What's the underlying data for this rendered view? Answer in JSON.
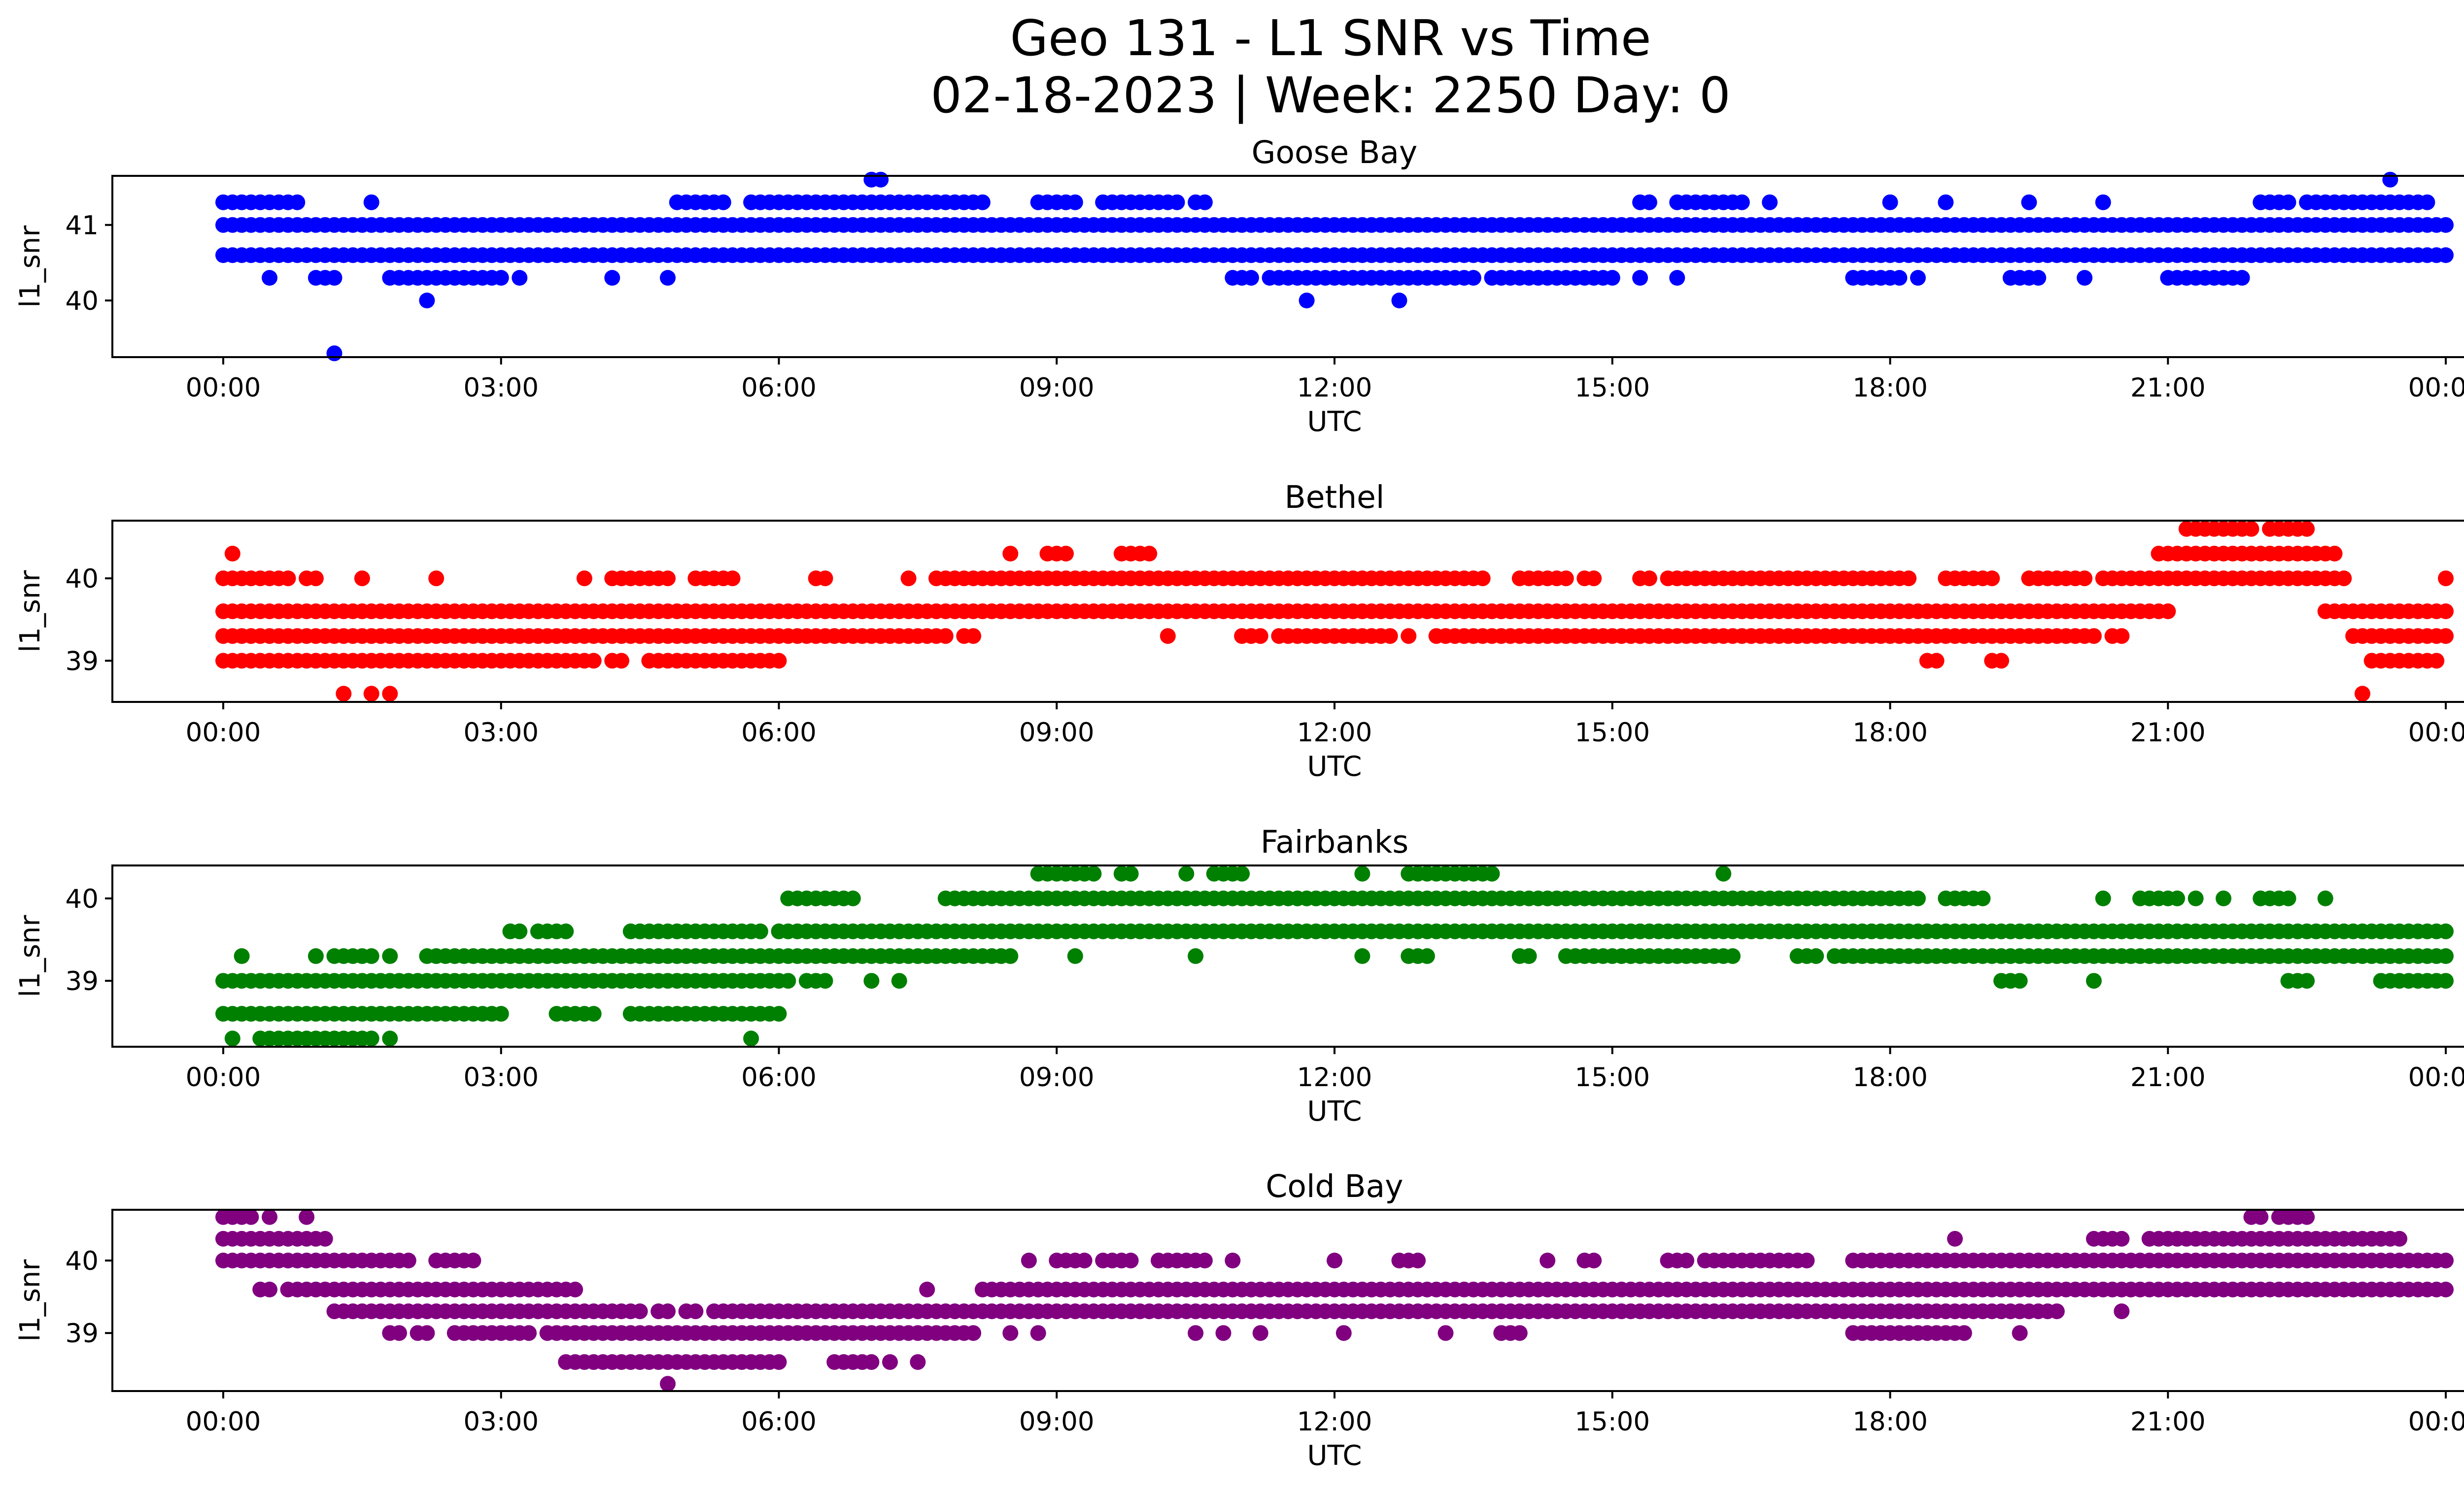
{
  "figure": {
    "title_line1": "Geo 131 - L1 SNR vs Time",
    "title_line2": "02-18-2023 | Week: 2250 Day: 0"
  },
  "chart_data": [
    {
      "type": "scatter",
      "title": "Goose Bay",
      "xlabel": "UTC",
      "ylabel": "l1_snr",
      "color": "#0000ff",
      "xlim": [
        "2023-02-18T00:00",
        "2023-02-19T00:00"
      ],
      "ylim": [
        39.25,
        41.65
      ],
      "x_ticks": [
        "00:00",
        "03:00",
        "06:00",
        "09:00",
        "12:00",
        "15:00",
        "18:00",
        "21:00",
        "00:00"
      ],
      "y_ticks": [
        {
          "value": 40,
          "label": "40"
        },
        {
          "value": 41,
          "label": "41"
        }
      ],
      "series": [
        {
          "value": 41.0,
          "segments": [
            [
              0.0,
              24.0
            ]
          ]
        },
        {
          "value": 40.6,
          "segments": [
            [
              0.0,
              24.0
            ]
          ]
        },
        {
          "value": 41.3,
          "segments": [
            [
              0.0,
              0.8
            ],
            [
              1.6,
              1.6
            ],
            [
              4.9,
              5.4
            ],
            [
              5.7,
              8.2
            ],
            [
              8.8,
              9.2
            ],
            [
              9.5,
              10.3
            ],
            [
              10.5,
              10.6
            ],
            [
              15.3,
              15.4
            ],
            [
              15.7,
              16.4
            ],
            [
              16.7,
              16.7
            ],
            [
              18.0,
              18.0
            ],
            [
              18.6,
              18.6
            ],
            [
              19.5,
              19.5
            ],
            [
              20.3,
              20.3
            ],
            [
              22.0,
              22.3
            ],
            [
              22.5,
              23.8
            ]
          ]
        },
        {
          "value": 40.3,
          "segments": [
            [
              0.5,
              0.5
            ],
            [
              1.0,
              1.2
            ],
            [
              1.8,
              3.0
            ],
            [
              3.2,
              3.2
            ],
            [
              4.2,
              4.2
            ],
            [
              4.8,
              4.8
            ],
            [
              10.9,
              11.1
            ],
            [
              11.3,
              13.5
            ],
            [
              13.7,
              14.7
            ],
            [
              14.8,
              15.0
            ],
            [
              15.3,
              15.3
            ],
            [
              15.7,
              15.7
            ],
            [
              17.6,
              18.1
            ],
            [
              18.3,
              18.3
            ],
            [
              19.3,
              19.5
            ],
            [
              19.6,
              19.6
            ],
            [
              20.1,
              20.1
            ],
            [
              21.0,
              21.8
            ]
          ]
        },
        {
          "value": 41.6,
          "segments": [
            [
              7.0,
              7.1
            ],
            [
              23.4,
              23.4
            ]
          ]
        },
        {
          "value": 40.0,
          "segments": [
            [
              2.2,
              2.2
            ],
            [
              11.7,
              11.7
            ],
            [
              12.7,
              12.7
            ]
          ]
        },
        {
          "value": 39.3,
          "segments": [
            [
              1.2,
              1.2
            ]
          ]
        }
      ]
    },
    {
      "type": "scatter",
      "title": "Bethel",
      "xlabel": "UTC",
      "ylabel": "l1_snr",
      "color": "#ff0000",
      "xlim": [
        "2023-02-18T00:00",
        "2023-02-19T00:00"
      ],
      "ylim": [
        38.5,
        40.7
      ],
      "x_ticks": [
        "00:00",
        "03:00",
        "06:00",
        "09:00",
        "12:00",
        "15:00",
        "18:00",
        "21:00",
        "00:00"
      ],
      "y_ticks": [
        {
          "value": 39,
          "label": "39"
        },
        {
          "value": 40,
          "label": "40"
        }
      ],
      "series": [
        {
          "value": 39.6,
          "segments": [
            [
              0.0,
              21.0
            ],
            [
              22.7,
              24.0
            ]
          ]
        },
        {
          "value": 39.3,
          "segments": [
            [
              0.0,
              7.8
            ],
            [
              8.0,
              8.1
            ],
            [
              10.2,
              10.2
            ],
            [
              11.0,
              11.2
            ],
            [
              11.4,
              11.6
            ],
            [
              11.7,
              12.6
            ],
            [
              12.8,
              12.8
            ],
            [
              13.1,
              13.2
            ],
            [
              13.3,
              16.0
            ],
            [
              16.1,
              16.9
            ],
            [
              17.0,
              20.2
            ],
            [
              20.4,
              20.5
            ],
            [
              23.0,
              24.0
            ]
          ]
        },
        {
          "value": 39.0,
          "segments": [
            [
              0.0,
              4.0
            ],
            [
              4.2,
              4.3
            ],
            [
              4.6,
              6.0
            ],
            [
              18.4,
              18.5
            ],
            [
              19.1,
              19.2
            ],
            [
              23.2,
              23.9
            ]
          ]
        },
        {
          "value": 40.0,
          "segments": [
            [
              0.0,
              0.5
            ],
            [
              0.6,
              0.7
            ],
            [
              0.9,
              1.0
            ],
            [
              1.5,
              1.5
            ],
            [
              2.3,
              2.3
            ],
            [
              3.9,
              3.9
            ],
            [
              4.2,
              4.8
            ],
            [
              5.1,
              5.5
            ],
            [
              6.4,
              6.5
            ],
            [
              7.4,
              7.4
            ],
            [
              7.7,
              13.6
            ],
            [
              14.0,
              14.5
            ],
            [
              14.7,
              14.8
            ],
            [
              15.3,
              15.4
            ],
            [
              15.6,
              17.8
            ],
            [
              17.9,
              18.1
            ],
            [
              18.2,
              18.2
            ],
            [
              18.6,
              19.1
            ],
            [
              19.5,
              20.1
            ],
            [
              20.3,
              22.9
            ],
            [
              24.0,
              24.0
            ]
          ]
        },
        {
          "value": 40.3,
          "segments": [
            [
              0.1,
              0.1
            ],
            [
              8.5,
              8.5
            ],
            [
              8.9,
              9.1
            ],
            [
              9.7,
              10.0
            ],
            [
              20.9,
              22.8
            ]
          ]
        },
        {
          "value": 40.6,
          "segments": [
            [
              21.2,
              21.9
            ],
            [
              22.1,
              22.5
            ]
          ]
        },
        {
          "value": 38.6,
          "segments": [
            [
              1.3,
              1.3
            ],
            [
              1.6,
              1.6
            ],
            [
              1.8,
              1.8
            ],
            [
              23.1,
              23.1
            ]
          ]
        }
      ]
    },
    {
      "type": "scatter",
      "title": "Fairbanks",
      "xlabel": "UTC",
      "ylabel": "l1_snr",
      "color": "#008000",
      "xlim": [
        "2023-02-18T00:00",
        "2023-02-19T00:00"
      ],
      "ylim": [
        38.2,
        40.4
      ],
      "x_ticks": [
        "00:00",
        "03:00",
        "06:00",
        "09:00",
        "12:00",
        "15:00",
        "18:00",
        "21:00",
        "00:00"
      ],
      "y_ticks": [
        {
          "value": 39,
          "label": "39"
        },
        {
          "value": 40,
          "label": "40"
        }
      ],
      "series": [
        {
          "value": 39.0,
          "segments": [
            [
              0.0,
              6.1
            ],
            [
              6.3,
              6.5
            ],
            [
              7.0,
              7.0
            ],
            [
              7.3,
              7.3
            ],
            [
              19.2,
              19.4
            ],
            [
              20.2,
              20.2
            ],
            [
              22.3,
              22.5
            ],
            [
              23.3,
              24.0
            ]
          ]
        },
        {
          "value": 38.6,
          "segments": [
            [
              0.0,
              3.0
            ],
            [
              3.6,
              4.0
            ],
            [
              4.4,
              6.0
            ]
          ]
        },
        {
          "value": 38.3,
          "segments": [
            [
              0.1,
              0.1
            ],
            [
              0.4,
              0.9
            ],
            [
              1.0,
              1.6
            ],
            [
              1.8,
              1.8
            ],
            [
              5.7,
              5.7
            ]
          ]
        },
        {
          "value": 39.3,
          "segments": [
            [
              0.2,
              0.2
            ],
            [
              1.0,
              1.0
            ],
            [
              1.2,
              1.6
            ],
            [
              1.8,
              1.8
            ],
            [
              2.2,
              8.4
            ],
            [
              8.5,
              8.5
            ],
            [
              9.2,
              9.2
            ],
            [
              10.5,
              10.5
            ],
            [
              12.3,
              12.3
            ],
            [
              12.8,
              13.0
            ],
            [
              14.0,
              14.1
            ],
            [
              14.5,
              16.2
            ],
            [
              16.3,
              16.3
            ],
            [
              17.0,
              17.2
            ],
            [
              17.4,
              17.9
            ],
            [
              17.9,
              24.0
            ]
          ]
        },
        {
          "value": 39.6,
          "segments": [
            [
              3.1,
              3.2
            ],
            [
              3.4,
              3.7
            ],
            [
              4.4,
              5.8
            ],
            [
              6.0,
              24.0
            ]
          ]
        },
        {
          "value": 40.0,
          "segments": [
            [
              6.1,
              6.8
            ],
            [
              7.8,
              17.7
            ],
            [
              17.8,
              18.3
            ],
            [
              18.6,
              19.0
            ],
            [
              20.3,
              20.3
            ],
            [
              20.7,
              21.1
            ],
            [
              21.3,
              21.3
            ],
            [
              21.6,
              21.6
            ],
            [
              22.0,
              22.3
            ],
            [
              22.7,
              22.7
            ]
          ]
        },
        {
          "value": 40.3,
          "segments": [
            [
              8.8,
              9.4
            ],
            [
              9.7,
              9.8
            ],
            [
              10.4,
              10.4
            ],
            [
              10.7,
              11.0
            ],
            [
              12.3,
              12.3
            ],
            [
              12.8,
              13.7
            ],
            [
              16.2,
              16.2
            ]
          ]
        }
      ]
    },
    {
      "type": "scatter",
      "title": "Cold Bay",
      "xlabel": "UTC",
      "ylabel": "l1_snr",
      "color": "#800080",
      "xlim": [
        "2023-02-18T00:00",
        "2023-02-19T00:00"
      ],
      "ylim": [
        38.2,
        40.7
      ],
      "x_ticks": [
        "00:00",
        "03:00",
        "06:00",
        "09:00",
        "12:00",
        "15:00",
        "18:00",
        "21:00",
        "00:00"
      ],
      "y_ticks": [
        {
          "value": 39,
          "label": "39"
        },
        {
          "value": 40,
          "label": "40"
        }
      ],
      "series": [
        {
          "value": 40.6,
          "segments": [
            [
              0.0,
              0.3
            ],
            [
              0.5,
              0.5
            ],
            [
              0.9,
              0.9
            ],
            [
              21.9,
              22.0
            ],
            [
              22.2,
              22.5
            ]
          ]
        },
        {
          "value": 40.3,
          "segments": [
            [
              0.0,
              1.1
            ],
            [
              18.7,
              18.7
            ],
            [
              20.2,
              20.5
            ],
            [
              20.8,
              23.5
            ]
          ]
        },
        {
          "value": 40.0,
          "segments": [
            [
              0.0,
              2.0
            ],
            [
              2.3,
              2.7
            ],
            [
              8.7,
              8.7
            ],
            [
              9.0,
              9.3
            ],
            [
              9.5,
              9.8
            ],
            [
              10.1,
              10.6
            ],
            [
              10.9,
              10.9
            ],
            [
              12.0,
              12.0
            ],
            [
              12.7,
              12.9
            ],
            [
              14.3,
              14.3
            ],
            [
              14.7,
              14.8
            ],
            [
              15.6,
              15.8
            ],
            [
              16.0,
              17.1
            ],
            [
              17.6,
              18.3
            ],
            [
              18.4,
              19.4
            ],
            [
              19.5,
              19.8
            ],
            [
              19.9,
              24.0
            ]
          ]
        },
        {
          "value": 39.6,
          "segments": [
            [
              0.4,
              0.5
            ],
            [
              0.7,
              3.8
            ],
            [
              7.6,
              7.6
            ],
            [
              8.2,
              24.0
            ]
          ]
        },
        {
          "value": 39.3,
          "segments": [
            [
              1.2,
              4.5
            ],
            [
              4.7,
              4.8
            ],
            [
              5.0,
              5.1
            ],
            [
              5.3,
              19.8
            ],
            [
              20.5,
              20.5
            ]
          ]
        },
        {
          "value": 39.0,
          "segments": [
            [
              1.8,
              1.9
            ],
            [
              2.1,
              2.2
            ],
            [
              2.5,
              2.9
            ],
            [
              3.0,
              3.3
            ],
            [
              3.5,
              8.1
            ],
            [
              8.5,
              8.5
            ],
            [
              8.8,
              8.8
            ],
            [
              10.5,
              10.5
            ],
            [
              10.8,
              10.8
            ],
            [
              11.2,
              11.2
            ],
            [
              12.1,
              12.1
            ],
            [
              13.2,
              13.2
            ],
            [
              13.8,
              14.0
            ],
            [
              17.6,
              18.8
            ],
            [
              19.4,
              19.4
            ]
          ]
        },
        {
          "value": 38.6,
          "segments": [
            [
              3.7,
              6.0
            ],
            [
              6.6,
              7.0
            ],
            [
              7.2,
              7.2
            ],
            [
              7.5,
              7.5
            ]
          ]
        },
        {
          "value": 38.3,
          "segments": [
            [
              4.8,
              4.8
            ]
          ]
        }
      ]
    }
  ]
}
